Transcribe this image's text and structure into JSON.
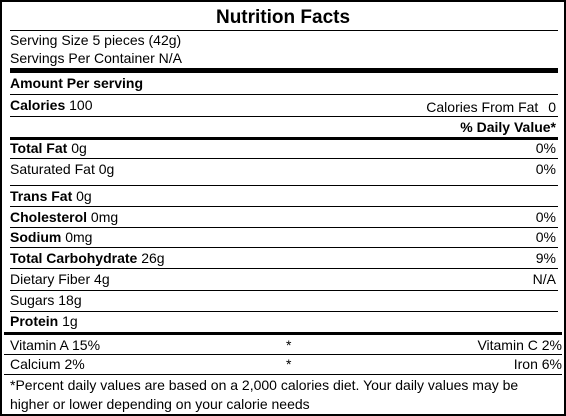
{
  "title": "Nutrition Facts",
  "serving_size": "Serving Size 5 pieces (42g)",
  "servings_per_container": "Servings Per Container N/A",
  "amount_per_serving": "Amount Per serving",
  "calories": {
    "label": "Calories",
    "value": "100"
  },
  "calories_from_fat": {
    "label": "Calories From Fat",
    "value": "0"
  },
  "daily_value_header": "% Daily Value*",
  "nutrients": [
    {
      "label": "Total Fat",
      "value": "0g",
      "dv": "0%"
    },
    {
      "label": "Saturated Fat",
      "value": "0g",
      "dv": "0%"
    },
    {
      "label": "Trans Fat",
      "value": "0g",
      "dv": ""
    },
    {
      "label": "Cholesterol",
      "value": "0mg",
      "dv": "0%"
    },
    {
      "label": "Sodium",
      "value": "0mg",
      "dv": "0%"
    },
    {
      "label": "Total Carbohydrate",
      "value": "26g",
      "dv": "9%"
    },
    {
      "label": "Dietary Fiber",
      "value": "4g",
      "dv": "N/A"
    },
    {
      "label": "Sugars",
      "value": "18g",
      "dv": ""
    },
    {
      "label": "Protein",
      "value": "1g",
      "dv": ""
    }
  ],
  "vitamins": [
    {
      "left": "Vitamin A 15%",
      "star": "*",
      "right": "Vitamin C 2%"
    },
    {
      "left": "Calcium 2%",
      "star": "*",
      "right": "Iron 6%"
    }
  ],
  "footnote": "*Percent daily values are based on a 2,000 calories diet. Your daily values may be higher or lower depending on your calorie needs"
}
